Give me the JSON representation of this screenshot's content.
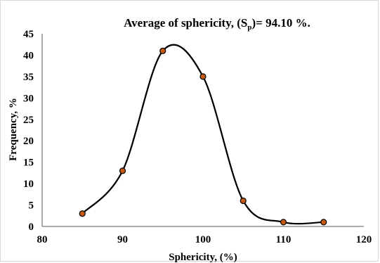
{
  "chart_data": {
    "type": "scatter",
    "title": {
      "prefix": "Average of sphericity, (S",
      "subscript": "p",
      "suffix": ")= 94.10 %."
    },
    "xlabel": "Sphericity, (%)",
    "ylabel": "Frequency, %",
    "xlim": [
      80,
      120
    ],
    "ylim": [
      0,
      45
    ],
    "x_ticks": [
      80,
      90,
      100,
      110,
      120
    ],
    "y_ticks": [
      0,
      5,
      10,
      15,
      20,
      25,
      30,
      35,
      40,
      45
    ],
    "grid": {
      "horizontal": false,
      "vertical": false
    },
    "legend": "none",
    "smooth_line": true,
    "series": [
      {
        "points": [
          {
            "x": 85,
            "y": 3
          },
          {
            "x": 90,
            "y": 13
          },
          {
            "x": 95,
            "y": 41
          },
          {
            "x": 100,
            "y": 35
          },
          {
            "x": 105,
            "y": 6
          },
          {
            "x": 110,
            "y": 1
          },
          {
            "x": 115,
            "y": 1
          }
        ],
        "marker_fill": "#c65911",
        "marker_stroke": "#000000",
        "line_color": "#000000"
      }
    ]
  }
}
